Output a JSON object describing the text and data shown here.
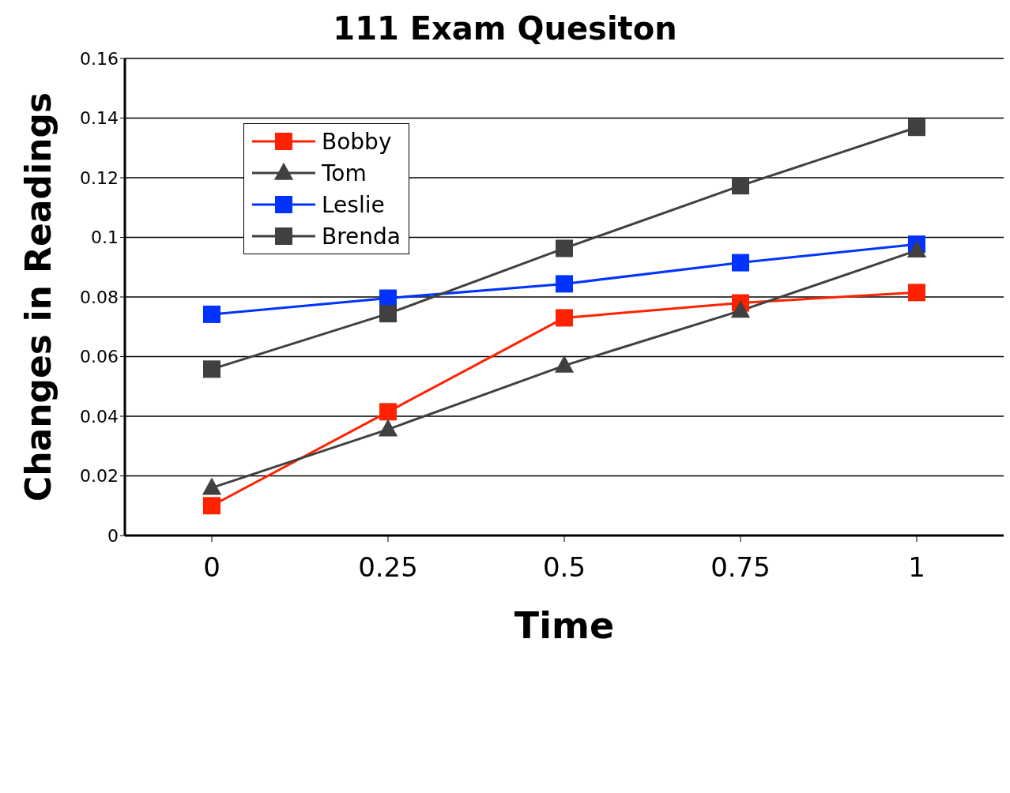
{
  "chart_data": {
    "type": "line",
    "title": "111 Exam Quesiton",
    "xlabel": "Time",
    "ylabel": "Changes in Readings",
    "categories": [
      "0",
      "0.25",
      "0.5",
      "0.75",
      "1"
    ],
    "series": [
      {
        "name": "Bobby",
        "color": "#ff2200",
        "marker": "square",
        "values": [
          0.01,
          0.0415,
          0.073,
          0.078,
          0.0815
        ]
      },
      {
        "name": "Tom",
        "color": "#404040",
        "marker": "triangle",
        "values": [
          0.016,
          0.0356,
          0.057,
          0.0754,
          0.0956
        ]
      },
      {
        "name": "Leslie",
        "color": "#0033ff",
        "marker": "square",
        "values": [
          0.0742,
          0.0796,
          0.0844,
          0.0915,
          0.0977
        ]
      },
      {
        "name": "Brenda",
        "color": "#404040",
        "marker": "square",
        "values": [
          0.0558,
          0.0744,
          0.0963,
          0.1173,
          0.1369
        ]
      }
    ],
    "ylim": [
      0,
      0.16
    ],
    "yticks": [
      0,
      0.02,
      0.04,
      0.06,
      0.08,
      0.1,
      0.12,
      0.14,
      0.16
    ],
    "grid": "y",
    "legend": "top left",
    "line_style": "solid"
  }
}
